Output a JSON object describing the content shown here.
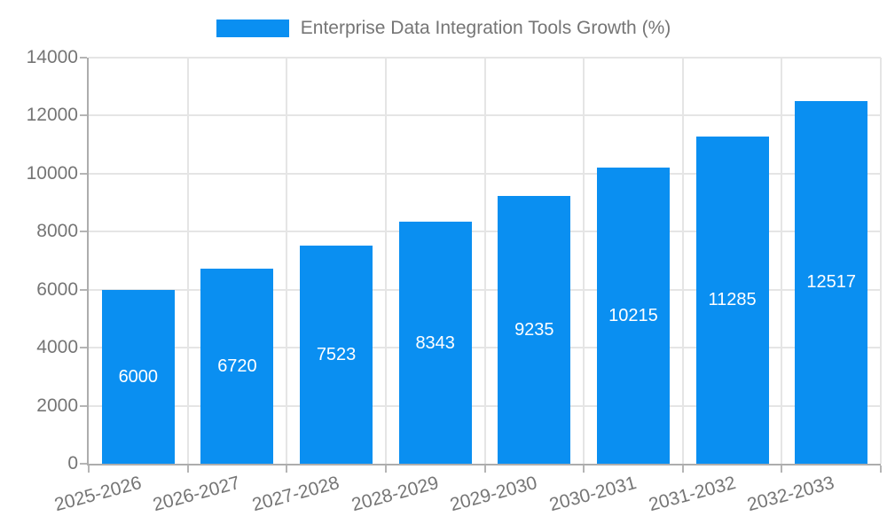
{
  "chart_data": {
    "type": "bar",
    "title": "Enterprise Data Integration Tools Growth (%)",
    "categories": [
      "2025-2026",
      "2026-2027",
      "2027-2028",
      "2028-2029",
      "2029-2030",
      "2030-2031",
      "2031-2032",
      "2032-2033"
    ],
    "values": [
      6000,
      6720,
      7523,
      8343,
      9235,
      10215,
      11285,
      12517
    ],
    "value_labels": [
      "6000",
      "6720",
      "7523",
      "8343",
      "9235",
      "10215",
      "11285",
      "12517"
    ],
    "xlabel": "",
    "ylabel": "",
    "ylim": [
      0,
      14000
    ],
    "ytick_step": 2000,
    "ytick_labels": [
      "0",
      "2000",
      "4000",
      "6000",
      "8000",
      "10000",
      "12000",
      "14000"
    ],
    "grid": true,
    "legend_position": "top-center",
    "x_label_rotation_deg": -15,
    "bar_color": "#0a8ff1",
    "value_label_color": "#ffffff"
  },
  "legend": {
    "label": "Enterprise Data Integration Tools Growth (%)"
  },
  "colors": {
    "bar": "#0a8ff1",
    "grid_line": "#e5e5e5",
    "axis_line": "#adadad",
    "tick": "#b5b5b5",
    "text": "#757575",
    "value_label": "#ffffff",
    "background": "#ffffff"
  }
}
